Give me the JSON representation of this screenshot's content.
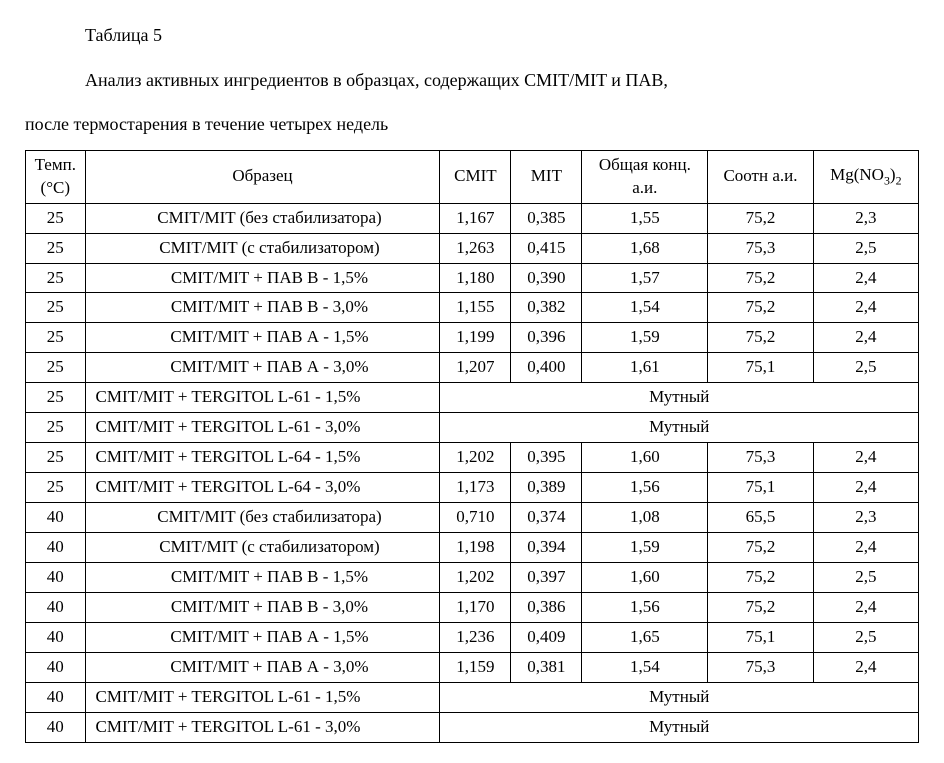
{
  "caption": "Таблица 5",
  "subtitle_line1": "Анализ активных ингредиентов в образцах, содержащих CMIT/MIT и ПАВ,",
  "subtitle_line2": "после термостарения в течение четырех недель",
  "headers": {
    "temp_line1": "Темп.",
    "temp_line2": "(°C)",
    "sample": "Образец",
    "cmit": "CMIT",
    "mit": "MIT",
    "total_line1": "Общая конц.",
    "total_line2": "а.и.",
    "ratio": "Соотн а.и.",
    "mg_prefix": "Mg(NO",
    "mg_sub1": "3",
    "mg_mid": ")",
    "mg_sub2": "2"
  },
  "rows": [
    {
      "temp": "25",
      "sample": "CMIT/MIT (без стабилизатора)",
      "align": "center",
      "cmit": "1,167",
      "mit": "0,385",
      "total": "1,55",
      "ratio": "75,2",
      "mg": "2,3"
    },
    {
      "temp": "25",
      "sample": "CMIT/MIT (с стабилизатором)",
      "align": "center",
      "cmit": "1,263",
      "mit": "0,415",
      "total": "1,68",
      "ratio": "75,3",
      "mg": "2,5"
    },
    {
      "temp": "25",
      "sample": "CMIT/MIT + ПАВ В - 1,5%",
      "align": "center",
      "cmit": "1,180",
      "mit": "0,390",
      "total": "1,57",
      "ratio": "75,2",
      "mg": "2,4"
    },
    {
      "temp": "25",
      "sample": "CMIT/MIT + ПАВ В - 3,0%",
      "align": "center",
      "cmit": "1,155",
      "mit": "0,382",
      "total": "1,54",
      "ratio": "75,2",
      "mg": "2,4"
    },
    {
      "temp": "25",
      "sample": "CMIT/MIT + ПАВ А - 1,5%",
      "align": "center",
      "cmit": "1,199",
      "mit": "0,396",
      "total": "1,59",
      "ratio": "75,2",
      "mg": "2,4"
    },
    {
      "temp": "25",
      "sample": "CMIT/MIT + ПАВ А - 3,0%",
      "align": "center",
      "cmit": "1,207",
      "mit": "0,400",
      "total": "1,61",
      "ratio": "75,1",
      "mg": "2,5"
    },
    {
      "temp": "25",
      "sample": "CMIT/MIT + TERGITOL L-61 - 1,5%",
      "align": "left",
      "merged": "Мутный"
    },
    {
      "temp": "25",
      "sample": "CMIT/MIT + TERGITOL L-61 - 3,0%",
      "align": "left",
      "merged": "Мутный"
    },
    {
      "temp": "25",
      "sample": "CMIT/MIT + TERGITOL L-64 - 1,5%",
      "align": "left",
      "cmit": "1,202",
      "mit": "0,395",
      "total": "1,60",
      "ratio": "75,3",
      "mg": "2,4"
    },
    {
      "temp": "25",
      "sample": "CMIT/MIT + TERGITOL L-64 - 3,0%",
      "align": "left",
      "cmit": "1,173",
      "mit": "0,389",
      "total": "1,56",
      "ratio": "75,1",
      "mg": "2,4"
    },
    {
      "temp": "40",
      "sample": "CMIT/MIT (без стабилизатора)",
      "align": "center",
      "cmit": "0,710",
      "mit": "0,374",
      "total": "1,08",
      "ratio": "65,5",
      "mg": "2,3"
    },
    {
      "temp": "40",
      "sample": "CMIT/MIT (с стабилизатором)",
      "align": "center",
      "cmit": "1,198",
      "mit": "0,394",
      "total": "1,59",
      "ratio": "75,2",
      "mg": "2,4"
    },
    {
      "temp": "40",
      "sample": "CMIT/MIT + ПАВ В - 1,5%",
      "align": "center",
      "cmit": "1,202",
      "mit": "0,397",
      "total": "1,60",
      "ratio": "75,2",
      "mg": "2,5"
    },
    {
      "temp": "40",
      "sample": "CMIT/MIT + ПАВ В - 3,0%",
      "align": "center",
      "cmit": "1,170",
      "mit": "0,386",
      "total": "1,56",
      "ratio": "75,2",
      "mg": "2,4"
    },
    {
      "temp": "40",
      "sample": "CMIT/MIT + ПАВ А - 1,5%",
      "align": "center",
      "cmit": "1,236",
      "mit": "0,409",
      "total": "1,65",
      "ratio": "75,1",
      "mg": "2,5"
    },
    {
      "temp": "40",
      "sample": "CMIT/MIT + ПАВ А - 3,0%",
      "align": "center",
      "cmit": "1,159",
      "mit": "0,381",
      "total": "1,54",
      "ratio": "75,3",
      "mg": "2,4"
    },
    {
      "temp": "40",
      "sample": "CMIT/MIT + TERGITOL L-61 - 1,5%",
      "align": "left",
      "merged": "Мутный"
    },
    {
      "temp": "40",
      "sample": "CMIT/MIT + TERGITOL L-61 - 3,0%",
      "align": "left",
      "merged": "Мутный"
    }
  ]
}
